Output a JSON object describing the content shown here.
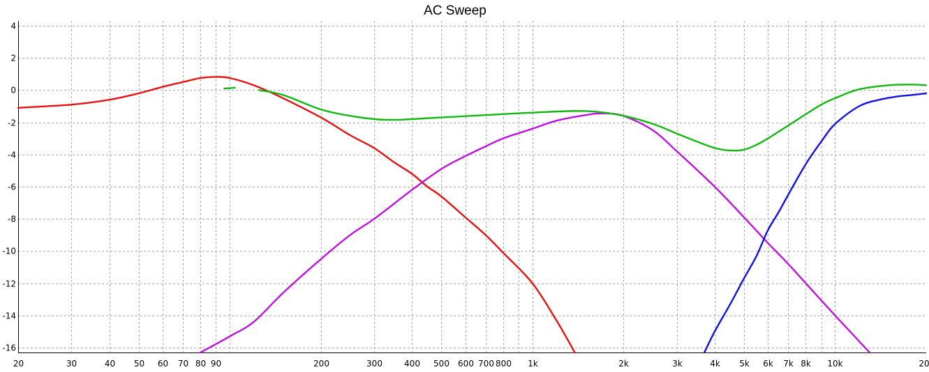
{
  "chart_data": {
    "type": "line",
    "title": "AC Sweep",
    "xlabel": "",
    "ylabel": "",
    "x_scale": "log",
    "xlim": [
      20,
      20000
    ],
    "ylim": [
      -16.3,
      4.3
    ],
    "grid": true,
    "legend": "none",
    "x_ticks": [
      {
        "value": 20,
        "label": "20"
      },
      {
        "value": 30,
        "label": "30"
      },
      {
        "value": 40,
        "label": "40"
      },
      {
        "value": 50,
        "label": "50"
      },
      {
        "value": 60,
        "label": "60"
      },
      {
        "value": 70,
        "label": "70"
      },
      {
        "value": 80,
        "label": "80"
      },
      {
        "value": 90,
        "label": "90"
      },
      {
        "value": 100,
        "label": ""
      },
      {
        "value": 200,
        "label": "200"
      },
      {
        "value": 300,
        "label": "300"
      },
      {
        "value": 400,
        "label": "400"
      },
      {
        "value": 500,
        "label": "500"
      },
      {
        "value": 600,
        "label": "600"
      },
      {
        "value": 700,
        "label": "700"
      },
      {
        "value": 800,
        "label": "800"
      },
      {
        "value": 900,
        "label": ""
      },
      {
        "value": 1000,
        "label": "1k"
      },
      {
        "value": 2000,
        "label": "2k"
      },
      {
        "value": 3000,
        "label": "3k"
      },
      {
        "value": 4000,
        "label": "4k"
      },
      {
        "value": 5000,
        "label": "5k"
      },
      {
        "value": 6000,
        "label": "6k"
      },
      {
        "value": 7000,
        "label": "7k"
      },
      {
        "value": 8000,
        "label": "8k"
      },
      {
        "value": 9000,
        "label": ""
      },
      {
        "value": 10000,
        "label": "10k"
      },
      {
        "value": 20000,
        "label": "20k"
      }
    ],
    "y_ticks": [
      {
        "value": 4,
        "label": "4"
      },
      {
        "value": 2,
        "label": "2"
      },
      {
        "value": 0,
        "label": "0"
      },
      {
        "value": -2,
        "label": "-2"
      },
      {
        "value": -4,
        "label": "-4"
      },
      {
        "value": -6,
        "label": "-6"
      },
      {
        "value": -8,
        "label": "-8"
      },
      {
        "value": -10,
        "label": "-10"
      },
      {
        "value": -12,
        "label": "-12"
      },
      {
        "value": -14,
        "label": "-14"
      },
      {
        "value": -16,
        "label": "-16"
      }
    ],
    "series": [
      {
        "color": "#e81010",
        "x": [
          20,
          30,
          40,
          50,
          60,
          70,
          80,
          90,
          100,
          120,
          150,
          200,
          250,
          300,
          350,
          400,
          450,
          500,
          600,
          700,
          800,
          1000,
          1200,
          1380
        ],
        "y": [
          -1.1,
          -0.9,
          -0.6,
          -0.2,
          0.2,
          0.5,
          0.75,
          0.82,
          0.75,
          0.3,
          -0.5,
          -1.7,
          -2.8,
          -3.6,
          -4.5,
          -5.2,
          -6.0,
          -6.6,
          -7.9,
          -9.0,
          -10.1,
          -12.0,
          -14.3,
          -16.3
        ]
      },
      {
        "color": "#c010e0",
        "x": [
          80,
          100,
          120,
          150,
          200,
          250,
          300,
          400,
          500,
          600,
          700,
          800,
          1000,
          1200,
          1500,
          1700,
          2000,
          2500,
          3000,
          4000,
          5000,
          6000,
          7000,
          8000,
          10000,
          12000,
          13000
        ],
        "y": [
          -16.3,
          -15.3,
          -14.4,
          -12.6,
          -10.5,
          -9.0,
          -8.0,
          -6.2,
          -4.9,
          -4.1,
          -3.5,
          -3.0,
          -2.4,
          -1.9,
          -1.55,
          -1.45,
          -1.6,
          -2.5,
          -3.8,
          -6.0,
          -7.9,
          -9.5,
          -10.8,
          -12.0,
          -14.0,
          -15.6,
          -16.3
        ]
      },
      {
        "color": "#1010e0",
        "x": [
          3700,
          4000,
          4500,
          5000,
          5500,
          6000,
          6500,
          7000,
          8000,
          9000,
          10000,
          12000,
          14000,
          16000,
          18000,
          20000
        ],
        "y": [
          -16.3,
          -15.0,
          -13.3,
          -11.7,
          -10.3,
          -8.7,
          -7.6,
          -6.5,
          -4.6,
          -3.2,
          -2.1,
          -1.0,
          -0.6,
          -0.4,
          -0.3,
          -0.2
        ]
      },
      {
        "color": "#10b810",
        "x": [
          125,
          150,
          200,
          250,
          300,
          350,
          400,
          500,
          700,
          1000,
          1500,
          2000,
          2500,
          3000,
          3500,
          4000,
          4500,
          5000,
          5500,
          6000,
          7000,
          8000,
          9000,
          10000,
          12000,
          15000,
          18000,
          20000
        ],
        "y": [
          0.0,
          -0.3,
          -1.2,
          -1.6,
          -1.8,
          -1.85,
          -1.8,
          -1.7,
          -1.55,
          -1.4,
          -1.3,
          -1.6,
          -2.1,
          -2.7,
          -3.2,
          -3.6,
          -3.75,
          -3.7,
          -3.4,
          -3.0,
          -2.2,
          -1.5,
          -0.9,
          -0.5,
          0.05,
          0.3,
          0.35,
          0.3
        ]
      },
      {
        "color": "#10b810",
        "x": [
          96,
          104
        ],
        "y": [
          0.1,
          0.15
        ]
      }
    ]
  }
}
